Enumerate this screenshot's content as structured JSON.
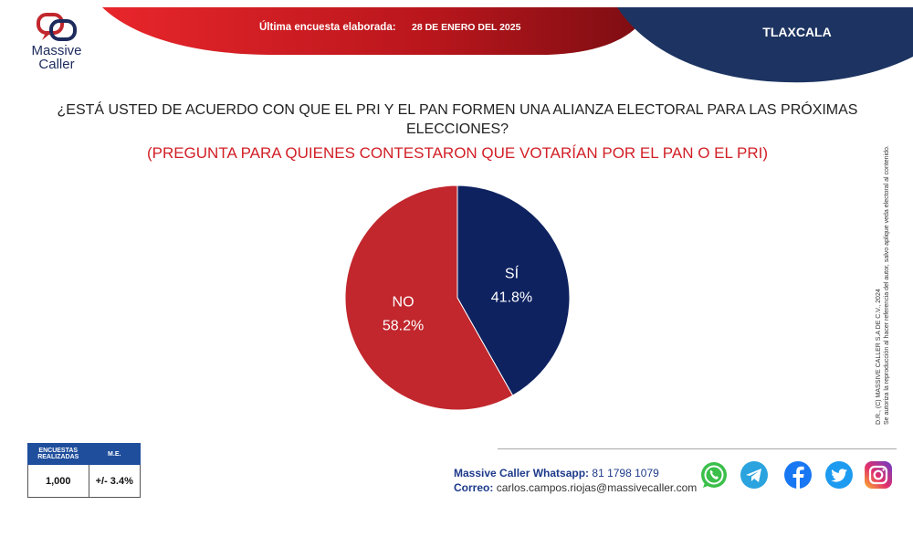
{
  "brand": {
    "name_line1": "Massive",
    "name_line2": "Caller"
  },
  "header": {
    "survey_label": "Última encuesta elaborada:",
    "survey_date": "28 DE ENERO DEL 2025",
    "region": "TLAXCALA"
  },
  "question": {
    "text": "¿ESTÁ USTED DE ACUERDO CON QUE EL PRI Y EL PAN FORMEN UNA ALIANZA ELECTORAL PARA LAS PRÓXIMAS ELECCIONES?",
    "subtext": "(PREGUNTA PARA QUIENES CONTESTARON QUE VOTARÍAN POR EL PAN O EL PRI)"
  },
  "chart_data": {
    "type": "pie",
    "title": "",
    "slices": [
      {
        "label": "SÍ",
        "value": 41.8,
        "display": "41.8%",
        "color": "#0e2260"
      },
      {
        "label": "NO",
        "value": 58.2,
        "display": "58.2%",
        "color": "#c1272d"
      }
    ]
  },
  "legal": {
    "line1": "D.R., (C) MASSIVE CALLER S.A DE C.V., 2024",
    "line2": "Se autoriza la reproducción al hacer referencia del autor, salvo aplique veda electoral al contenido."
  },
  "stats": {
    "header_surveys_line1": "ENCUESTAS",
    "header_surveys_line2": "REALIZADAS",
    "header_me": "M.E.",
    "surveys": "1,000",
    "me": "+/- 3.4%"
  },
  "contact": {
    "whatsapp_label": "Massive Caller Whatsapp:",
    "whatsapp_number": "81 1798 1079",
    "email_label": "Correo:",
    "email": "carlos.campos.riojas@massivecaller.com"
  },
  "colors": {
    "red": "#c1272d",
    "navy": "#0e2260",
    "header_blue": "#1f4e9c"
  },
  "social_icons": [
    "whatsapp-icon",
    "telegram-icon",
    "facebook-icon",
    "twitter-icon",
    "instagram-icon"
  ]
}
